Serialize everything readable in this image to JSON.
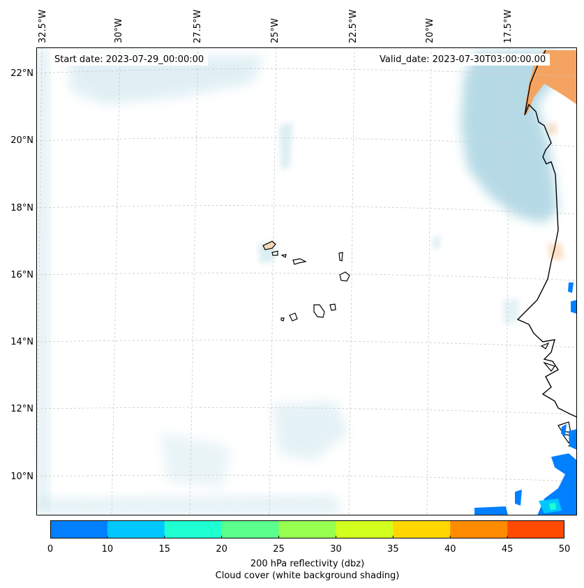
{
  "map": {
    "start_date": "Start date: 2023-07-29_00:00:00",
    "valid_date": "Valid_date: 2023-07-30T03:00:00.00",
    "lon_labels": [
      "32.5°W",
      "30°W",
      "27.5°W",
      "25°W",
      "22.5°W",
      "20°W",
      "17.5°W"
    ],
    "lat_labels": [
      "22°N",
      "20°N",
      "18°N",
      "16°N",
      "14°N",
      "12°N",
      "10°N"
    ]
  },
  "colorbar": {
    "ticks": [
      "0",
      "10",
      "15",
      "20",
      "25",
      "30",
      "35",
      "40",
      "45",
      "50"
    ],
    "colors": [
      "#0080ff",
      "#00c8ff",
      "#1effd2",
      "#5aff8c",
      "#96ff50",
      "#d2ff1e",
      "#ffd700",
      "#ff8c00",
      "#ff4b00"
    ],
    "label_line1": "200 hPa reflectivity (dbz)",
    "label_line2": "Cloud cover (white background shading)"
  },
  "colors": {
    "cloud": "#a9d4e2",
    "warm_cloud": "#f4a460",
    "coast": "#000000"
  }
}
